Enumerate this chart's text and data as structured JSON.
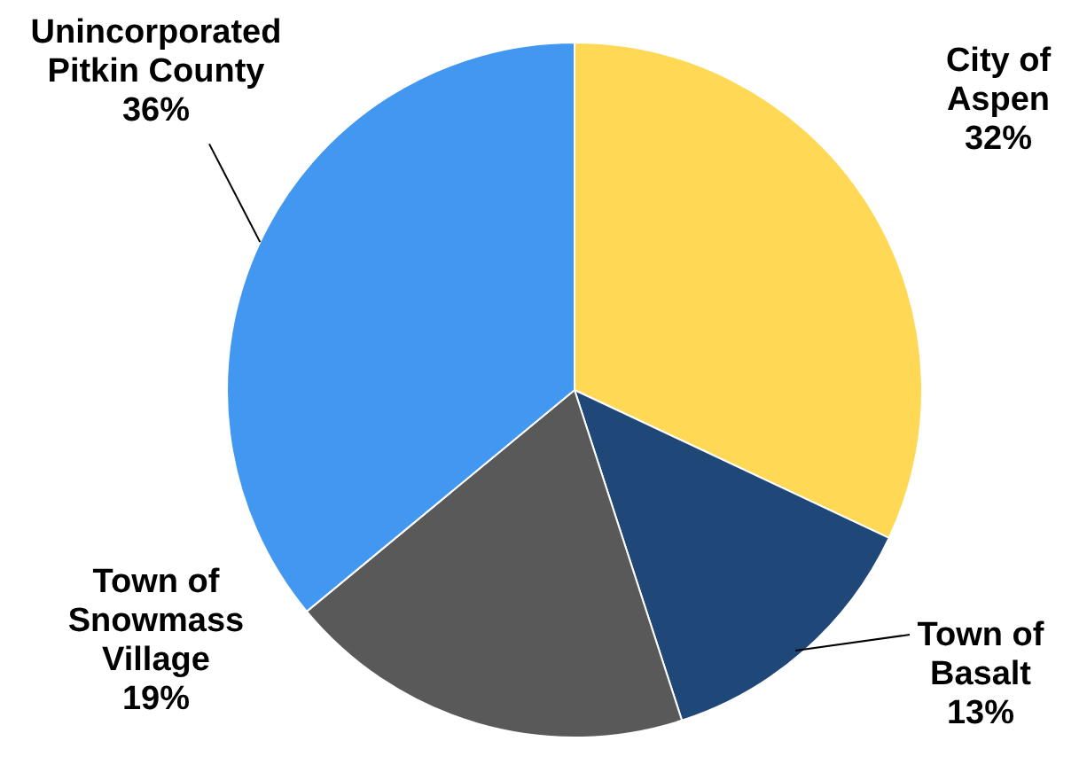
{
  "chart_data": {
    "type": "pie",
    "categories": [
      "City of\nAspen",
      "Town of\nBasalt",
      "Town of\nSnowmass\nVillage",
      "Unincorporated\nPitkin County"
    ],
    "values": [
      32,
      13,
      19,
      36
    ],
    "colors": [
      "#ffd955",
      "#1f4778",
      "#595959",
      "#4297f0"
    ],
    "value_labels": [
      "32%",
      "13%",
      "19%",
      "36%"
    ]
  }
}
